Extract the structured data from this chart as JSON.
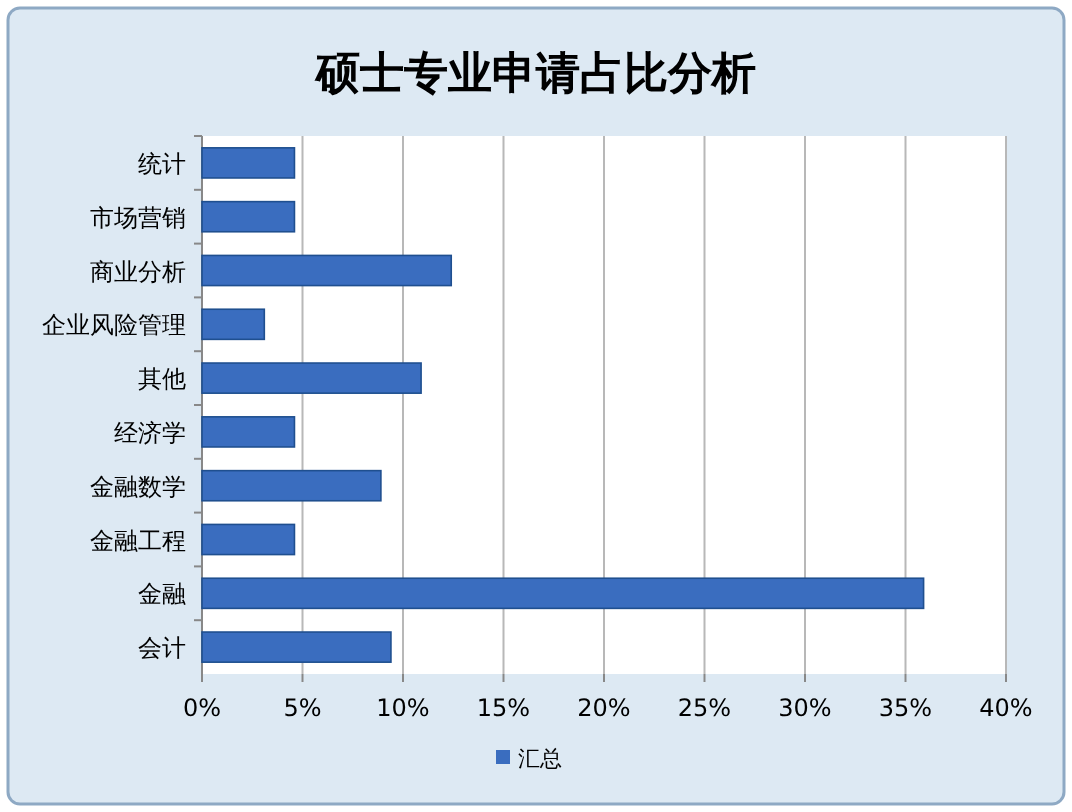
{
  "chart_data": {
    "type": "bar",
    "orientation": "horizontal",
    "title": "硕士专业申请占比分析",
    "categories": [
      "统计",
      "市场营销",
      "商业分析",
      "企业风险管理",
      "其他",
      "经济学",
      "金融数学",
      "金融工程",
      "金融",
      "会计"
    ],
    "series": [
      {
        "name": "汇总",
        "color": "#3a6dbf",
        "values": [
          4.6,
          4.6,
          12.4,
          3.1,
          10.9,
          4.6,
          8.9,
          4.6,
          35.9,
          9.4
        ]
      }
    ],
    "xlim": [
      0,
      40
    ],
    "xticks": [
      {
        "value": 0,
        "label": "0%"
      },
      {
        "value": 5,
        "label": "5%"
      },
      {
        "value": 10,
        "label": "10%"
      },
      {
        "value": 15,
        "label": "15%"
      },
      {
        "value": 20,
        "label": "20%"
      },
      {
        "value": 25,
        "label": "25%"
      },
      {
        "value": 30,
        "label": "30%"
      },
      {
        "value": 35,
        "label": "35%"
      },
      {
        "value": 40,
        "label": "40%"
      }
    ],
    "grid": "x",
    "legend": "bottom"
  }
}
